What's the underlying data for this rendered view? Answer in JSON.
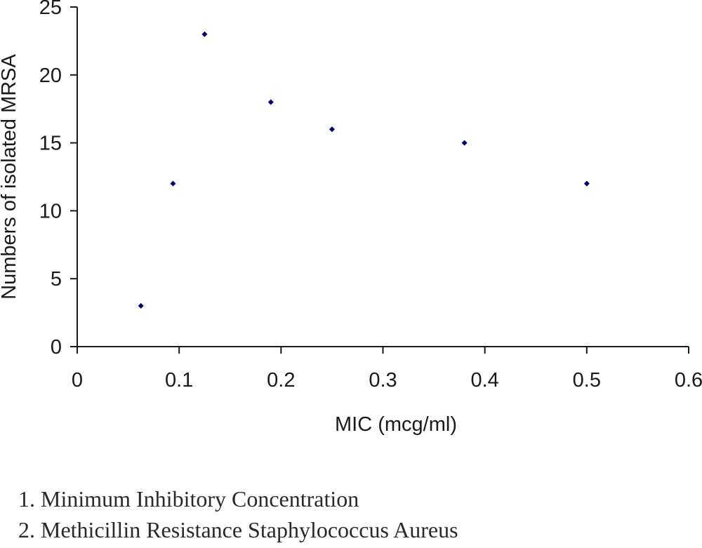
{
  "chart_data": {
    "type": "scatter",
    "title": "",
    "xlabel": "MIC (mcg/ml)",
    "ylabel": "Numbers of isolated MRSA",
    "xlim": [
      0,
      0.6
    ],
    "ylim": [
      0,
      25
    ],
    "x_ticks": [
      "0",
      "0.1",
      "0.2",
      "0.3",
      "0.4",
      "0.5",
      "0.6"
    ],
    "y_ticks": [
      "0",
      "5",
      "10",
      "15",
      "20",
      "25"
    ],
    "grid": false,
    "legend": "none",
    "marker_color": "#00006b",
    "series": [
      {
        "points": [
          {
            "x": 0.0625,
            "y": 3
          },
          {
            "x": 0.094,
            "y": 12
          },
          {
            "x": 0.125,
            "y": 23
          },
          {
            "x": 0.19,
            "y": 18
          },
          {
            "x": 0.25,
            "y": 16
          },
          {
            "x": 0.38,
            "y": 15
          },
          {
            "x": 0.5,
            "y": 12
          }
        ]
      }
    ]
  },
  "footnotes": [
    "1. Minimum Inhibitory Concentration",
    "2. Methicillin Resistance Staphylococcus Aureus"
  ]
}
